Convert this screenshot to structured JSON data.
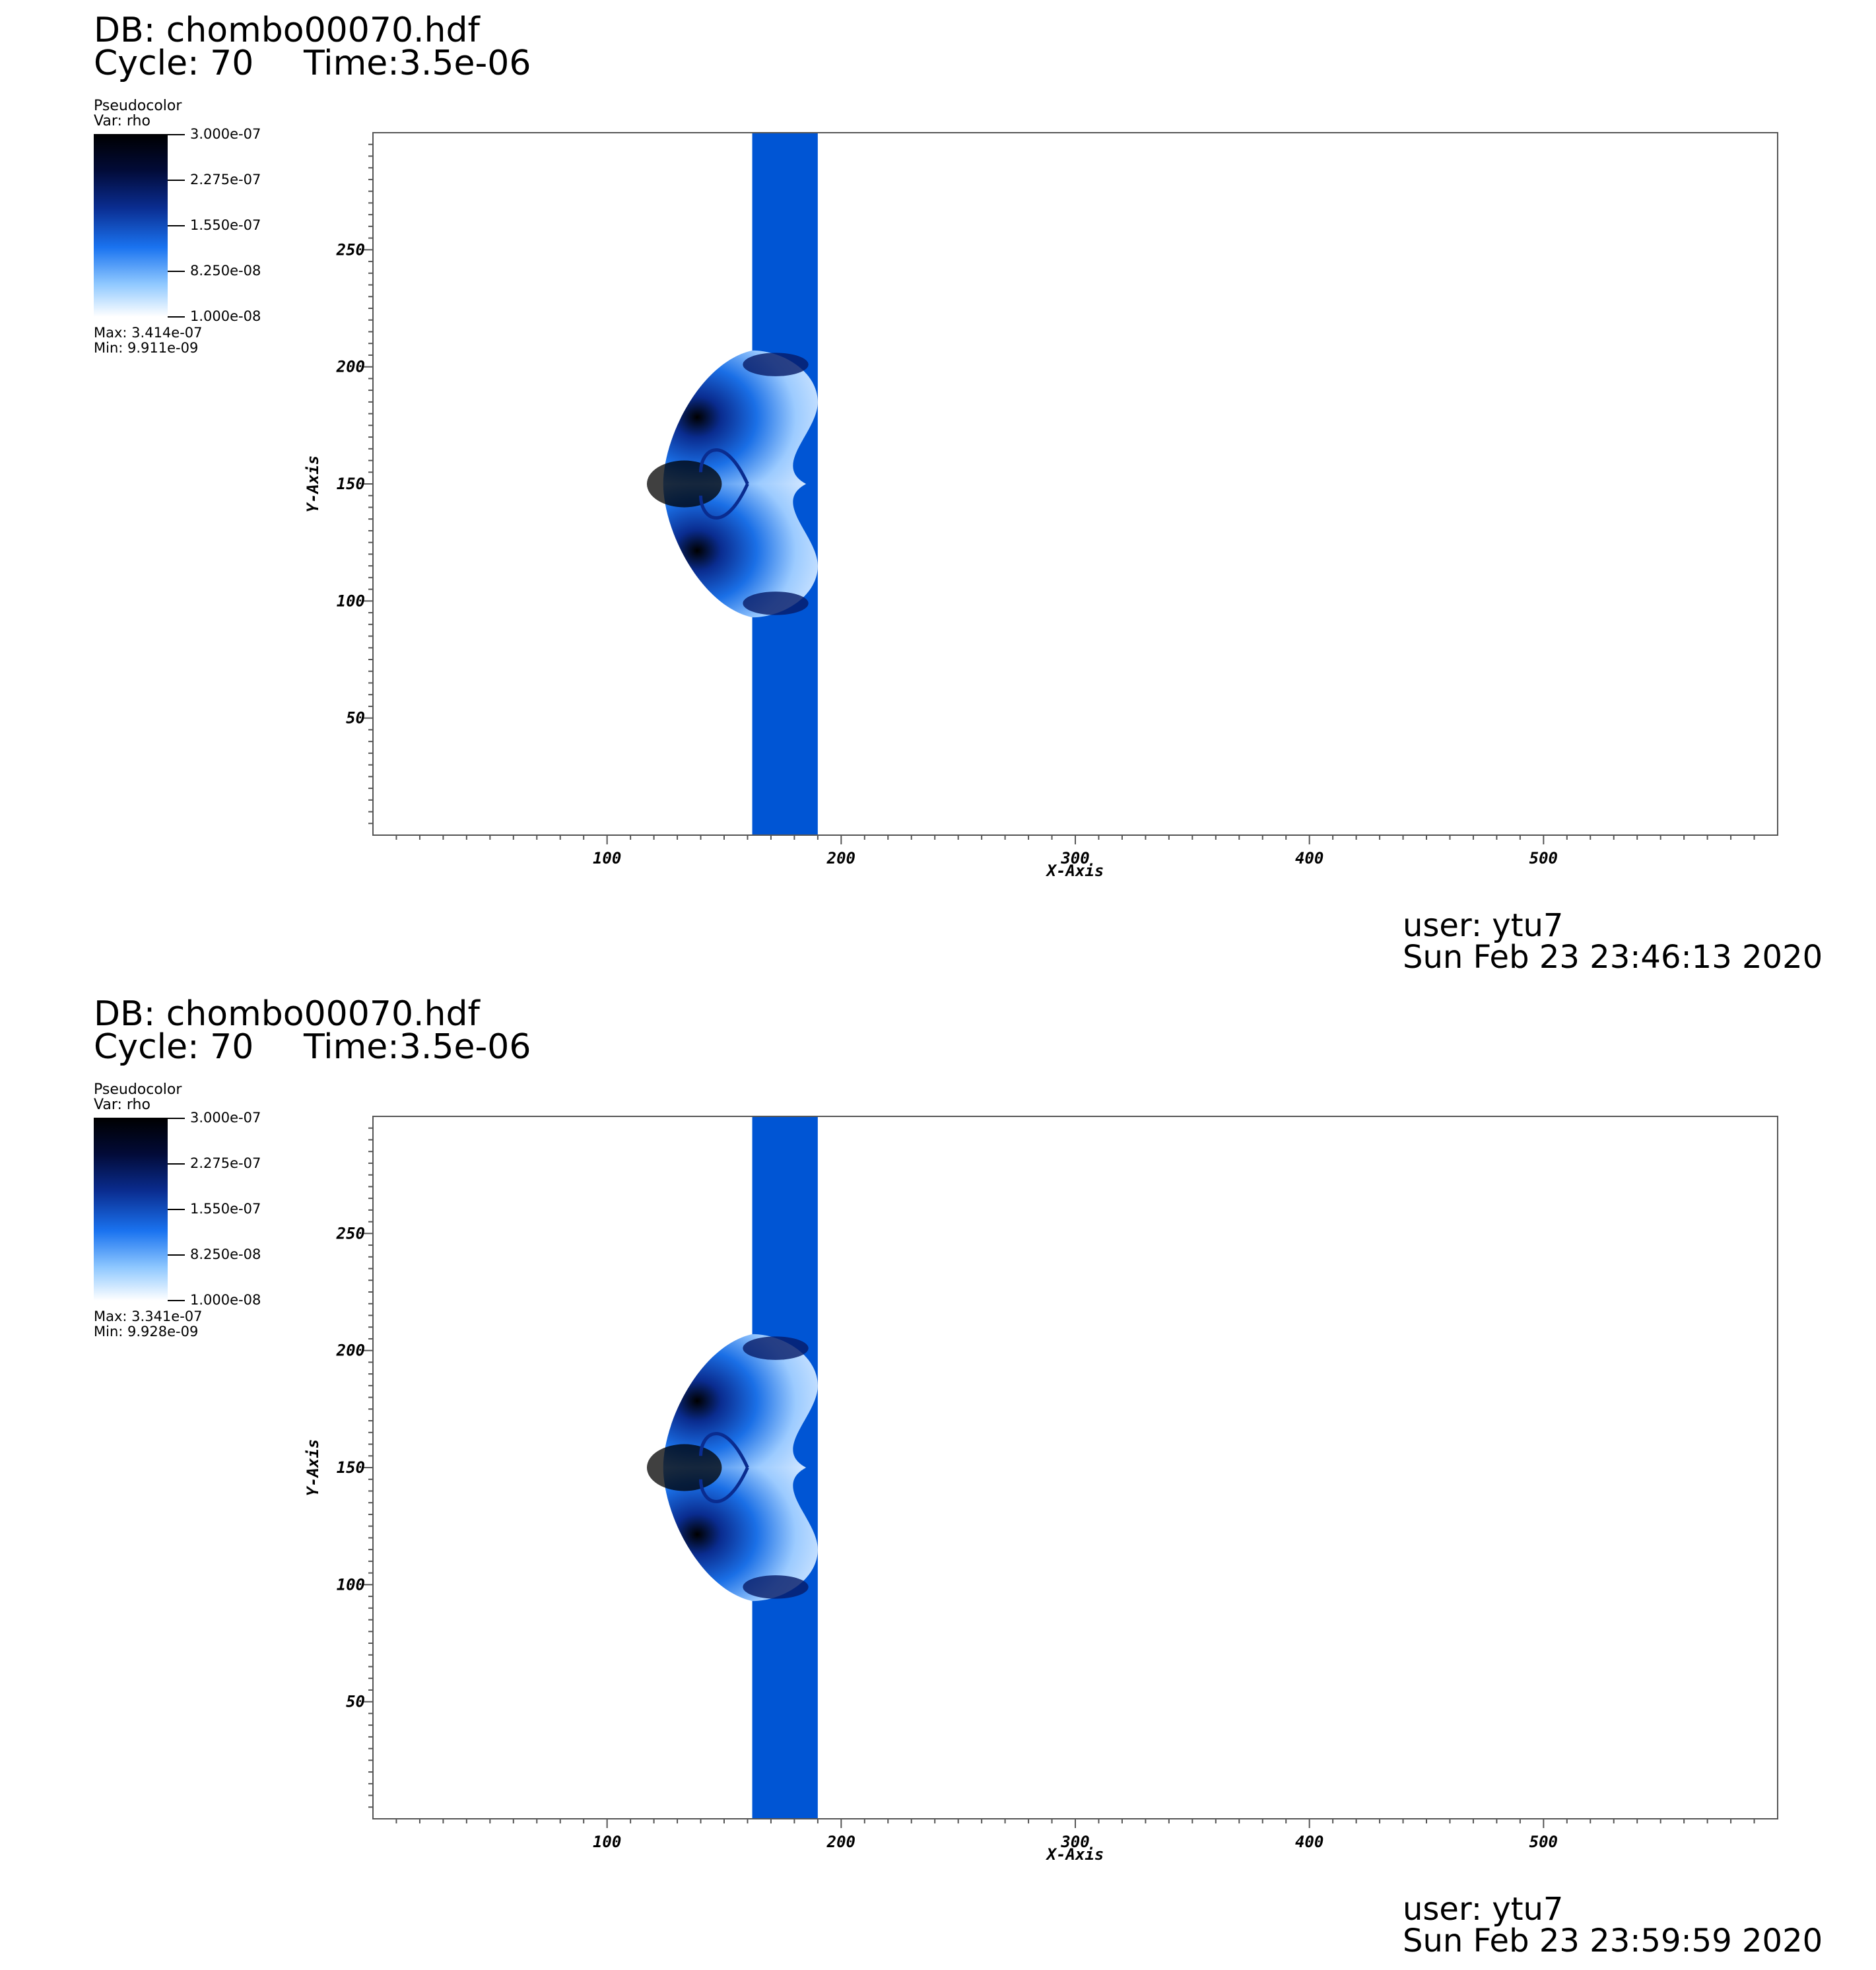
{
  "panels": [
    {
      "db_title": "DB: chombo00070.hdf",
      "cycle": "Cycle: 70",
      "time": "Time:3.5e-06",
      "legend": {
        "title": "Pseudocolor",
        "var": "Var: rho",
        "ticks": [
          "3.000e-07",
          "2.275e-07",
          "1.550e-07",
          "8.250e-08",
          "1.000e-08"
        ],
        "max": "Max:  3.414e-07",
        "min": "Min:  9.911e-09"
      },
      "user": "user: ytu7",
      "date": "Sun Feb 23 23:46:13 2020"
    },
    {
      "db_title": "DB: chombo00070.hdf",
      "cycle": "Cycle: 70",
      "time": "Time:3.5e-06",
      "legend": {
        "title": "Pseudocolor",
        "var": "Var: rho",
        "ticks": [
          "3.000e-07",
          "2.275e-07",
          "1.550e-07",
          "8.250e-08",
          "1.000e-08"
        ],
        "max": "Max:  3.341e-07",
        "min": "Min:  9.928e-09"
      },
      "user": "user: ytu7",
      "date": "Sun Feb 23 23:59:59 2020"
    }
  ],
  "chart_data": [
    {
      "type": "heatmap",
      "variable": "rho",
      "xlabel": "X-Axis",
      "ylabel": "Y-Axis",
      "xlim": [
        0,
        600
      ],
      "ylim": [
        0,
        300
      ],
      "x_ticks": [
        100,
        200,
        300,
        400,
        500
      ],
      "y_ticks": [
        50,
        100,
        150,
        200,
        250
      ],
      "colorbar_range": [
        1e-08,
        3e-07
      ],
      "data_max": 3.414e-07,
      "data_min": 9.911e-09,
      "colors": {
        "dark": "#000000",
        "mid": "#0a2c8f",
        "band": "#0055d4",
        "light": "#cfe5ff"
      }
    },
    {
      "type": "heatmap",
      "variable": "rho",
      "xlabel": "X-Axis",
      "ylabel": "Y-Axis",
      "xlim": [
        0,
        600
      ],
      "ylim": [
        0,
        300
      ],
      "x_ticks": [
        100,
        200,
        300,
        400,
        500
      ],
      "y_ticks": [
        50,
        100,
        150,
        200,
        250
      ],
      "colorbar_range": [
        1e-08,
        3e-07
      ],
      "data_max": 3.341e-07,
      "data_min": 9.928e-09,
      "colors": {
        "dark": "#000000",
        "mid": "#0a2c8f",
        "band": "#0055d4",
        "light": "#cfe5ff"
      }
    }
  ]
}
